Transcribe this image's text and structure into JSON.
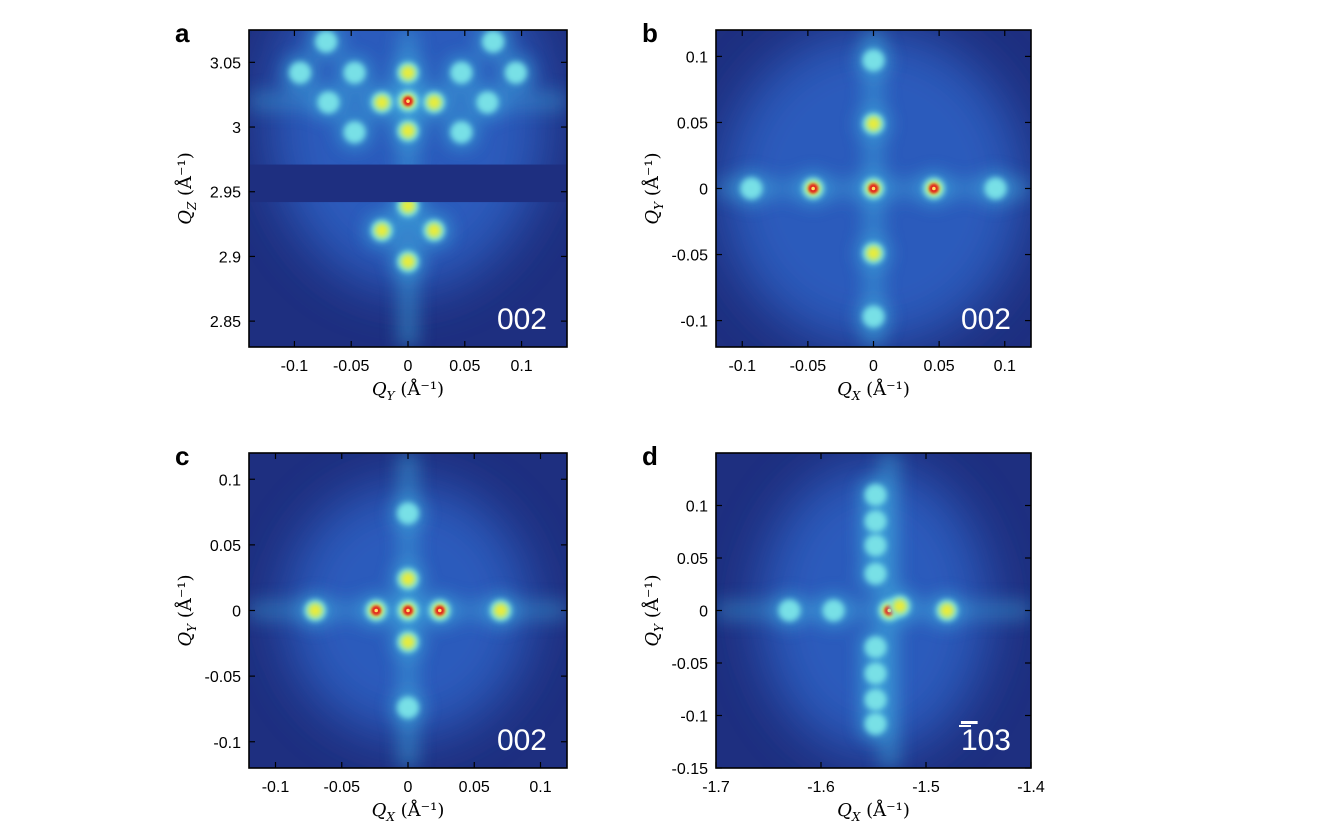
{
  "colors": {
    "background": "#1e2f80",
    "halo": "#2e63c7",
    "mid": "#3fa9dc",
    "glow": "#78e0e6",
    "yellow": "#e8ec3a",
    "red": "#e2231a"
  },
  "chart_data": [
    {
      "panel": "a",
      "type": "heatmap",
      "reflection": "002",
      "xlabel": {
        "sym": "Q",
        "sub": "Y",
        "unit": "(Å⁻¹)"
      },
      "ylabel": {
        "sym": "Q",
        "sub": "Z",
        "unit": "(Å⁻¹)"
      },
      "xlim": [
        -0.14,
        0.14
      ],
      "ylim": [
        2.83,
        3.075
      ],
      "xticks": [
        -0.1,
        -0.05,
        0,
        0.05,
        0.1
      ],
      "xtick_labels": [
        "-0.1",
        "-0.05",
        "0",
        "0.05",
        "0.1"
      ],
      "yticks": [
        2.85,
        2.9,
        2.95,
        3,
        3.05
      ],
      "ytick_labels": [
        "2.85",
        "2.9",
        "2.95",
        "3",
        "3.05"
      ],
      "gap_band": [
        2.942,
        2.971
      ],
      "peaks": [
        {
          "x": 0,
          "y": 3.02,
          "level": "red"
        },
        {
          "x": 0,
          "y": 3.042,
          "level": "yellow"
        },
        {
          "x": 0,
          "y": 2.997,
          "level": "yellow"
        },
        {
          "x": 0,
          "y": 2.939,
          "level": "yellow"
        },
        {
          "x": 0,
          "y": 2.896,
          "level": "yellow"
        },
        {
          "x": -0.023,
          "y": 3.019,
          "level": "yellow"
        },
        {
          "x": 0.023,
          "y": 3.019,
          "level": "yellow"
        },
        {
          "x": -0.023,
          "y": 2.92,
          "level": "yellow"
        },
        {
          "x": 0.023,
          "y": 2.92,
          "level": "yellow"
        },
        {
          "x": -0.047,
          "y": 2.996,
          "level": "glow"
        },
        {
          "x": 0.047,
          "y": 2.996,
          "level": "glow"
        },
        {
          "x": -0.047,
          "y": 3.042,
          "level": "glow"
        },
        {
          "x": 0.047,
          "y": 3.042,
          "level": "glow"
        },
        {
          "x": -0.07,
          "y": 3.019,
          "level": "glow"
        },
        {
          "x": 0.07,
          "y": 3.019,
          "level": "glow"
        },
        {
          "x": -0.072,
          "y": 3.066,
          "level": "glow"
        },
        {
          "x": 0.075,
          "y": 3.066,
          "level": "glow"
        },
        {
          "x": -0.095,
          "y": 3.042,
          "level": "glow"
        },
        {
          "x": 0.095,
          "y": 3.042,
          "level": "glow"
        }
      ]
    },
    {
      "panel": "b",
      "type": "heatmap",
      "reflection": "002",
      "xlabel": {
        "sym": "Q",
        "sub": "X",
        "unit": "(Å⁻¹)"
      },
      "ylabel": {
        "sym": "Q",
        "sub": "Y",
        "unit": "(Å⁻¹)"
      },
      "xlim": [
        -0.12,
        0.12
      ],
      "ylim": [
        -0.12,
        0.12
      ],
      "xticks": [
        -0.1,
        -0.05,
        0,
        0.05,
        0.1
      ],
      "xtick_labels": [
        "-0.1",
        "-0.05",
        "0",
        "0.05",
        "0.1"
      ],
      "yticks": [
        -0.1,
        -0.05,
        0,
        0.05,
        0.1
      ],
      "ytick_labels": [
        "-0.1",
        "-0.05",
        "0",
        "0.05",
        "0.1"
      ],
      "peaks": [
        {
          "x": 0,
          "y": 0,
          "level": "red"
        },
        {
          "x": -0.046,
          "y": 0,
          "level": "red"
        },
        {
          "x": 0.046,
          "y": 0,
          "level": "red"
        },
        {
          "x": 0,
          "y": 0.049,
          "level": "yellow"
        },
        {
          "x": 0,
          "y": -0.049,
          "level": "yellow"
        },
        {
          "x": -0.093,
          "y": 0,
          "level": "glow"
        },
        {
          "x": 0.093,
          "y": 0,
          "level": "glow"
        },
        {
          "x": 0,
          "y": 0.097,
          "level": "glow"
        },
        {
          "x": 0,
          "y": -0.097,
          "level": "glow"
        }
      ]
    },
    {
      "panel": "c",
      "type": "heatmap",
      "reflection": "002",
      "xlabel": {
        "sym": "Q",
        "sub": "X",
        "unit": "(Å⁻¹)"
      },
      "ylabel": {
        "sym": "Q",
        "sub": "Y",
        "unit": "(Å⁻¹)"
      },
      "xlim": [
        -0.12,
        0.12
      ],
      "ylim": [
        -0.12,
        0.12
      ],
      "xticks": [
        -0.1,
        -0.05,
        0,
        0.05,
        0.1
      ],
      "xtick_labels": [
        "-0.1",
        "-0.05",
        "0",
        "0.05",
        "0.1"
      ],
      "yticks": [
        -0.1,
        -0.05,
        0,
        0.05,
        0.1
      ],
      "ytick_labels": [
        "-0.1",
        "-0.05",
        "0",
        "0.05",
        "0.1"
      ],
      "peaks": [
        {
          "x": 0,
          "y": 0,
          "level": "red"
        },
        {
          "x": -0.024,
          "y": 0,
          "level": "red"
        },
        {
          "x": 0.024,
          "y": 0,
          "level": "red"
        },
        {
          "x": 0,
          "y": 0.024,
          "level": "yellow"
        },
        {
          "x": 0,
          "y": -0.024,
          "level": "yellow"
        },
        {
          "x": -0.07,
          "y": 0,
          "level": "yellow"
        },
        {
          "x": 0.07,
          "y": 0,
          "level": "yellow"
        },
        {
          "x": 0,
          "y": 0.074,
          "level": "glow"
        },
        {
          "x": 0,
          "y": -0.074,
          "level": "glow"
        }
      ]
    },
    {
      "panel": "d",
      "type": "heatmap",
      "reflection": "103",
      "reflection_overbar": true,
      "xlabel": {
        "sym": "Q",
        "sub": "X",
        "unit": "(Å⁻¹)"
      },
      "ylabel": {
        "sym": "Q",
        "sub": "Y",
        "unit": "(Å⁻¹)"
      },
      "xlim": [
        -1.7,
        -1.4
      ],
      "ylim": [
        -0.15,
        0.15
      ],
      "xticks": [
        -1.7,
        -1.6,
        -1.5,
        -1.4
      ],
      "xtick_labels": [
        "-1.7",
        "-1.6",
        "-1.5",
        "-1.4"
      ],
      "yticks": [
        -0.15,
        -0.1,
        -0.05,
        0,
        0.05,
        0.1
      ],
      "ytick_labels": [
        "-0.15",
        "-0.1",
        "-0.05",
        "0",
        "0.05",
        "0.1"
      ],
      "peaks": [
        {
          "x": -1.535,
          "y": 0,
          "level": "red"
        },
        {
          "x": -1.525,
          "y": 0.004,
          "level": "yellow"
        },
        {
          "x": -1.48,
          "y": 0,
          "level": "yellow"
        },
        {
          "x": -1.63,
          "y": 0,
          "level": "glow"
        },
        {
          "x": -1.588,
          "y": 0,
          "level": "glow"
        },
        {
          "x": -1.548,
          "y": 0.11,
          "level": "glow"
        },
        {
          "x": -1.548,
          "y": 0.085,
          "level": "glow"
        },
        {
          "x": -1.548,
          "y": 0.062,
          "level": "glow"
        },
        {
          "x": -1.548,
          "y": 0.035,
          "level": "glow"
        },
        {
          "x": -1.548,
          "y": -0.035,
          "level": "glow"
        },
        {
          "x": -1.548,
          "y": -0.06,
          "level": "glow"
        },
        {
          "x": -1.548,
          "y": -0.085,
          "level": "glow"
        },
        {
          "x": -1.548,
          "y": -0.108,
          "level": "glow"
        }
      ]
    }
  ]
}
